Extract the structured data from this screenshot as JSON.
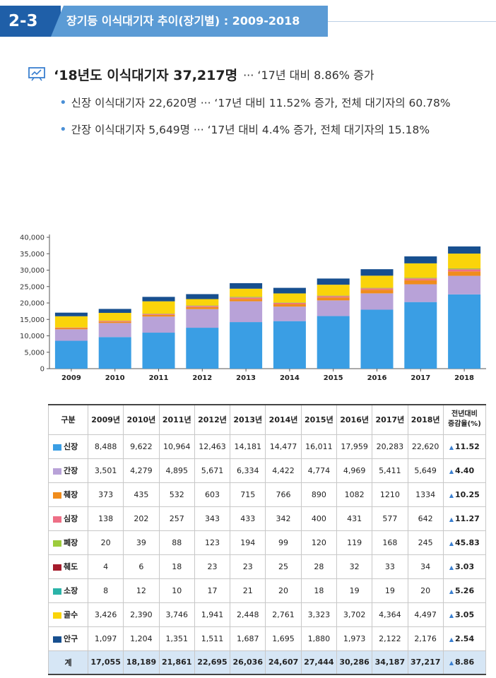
{
  "header": {
    "code": "2-3",
    "title": "장기등 이식대기자 추이(장기별) : 2009-2018"
  },
  "summary": {
    "main_bold": "‘18년도 이식대기자 37,217명",
    "main_rest": "··· ‘17년 대비 8.86% 증가",
    "bullets": [
      "신장 이식대기자 22,620명 ··· ‘17년 대비 11.52% 증가, 전체 대기자의 60.78%",
      "간장 이식대기자 5,649명 ··· ‘17년 대비 4.4% 증가, 전체 대기자의 15.18%"
    ]
  },
  "chart_data": {
    "type": "bar",
    "stacked": true,
    "categories": [
      "2009",
      "2010",
      "2011",
      "2012",
      "2013",
      "2014",
      "2015",
      "2016",
      "2017",
      "2018"
    ],
    "ylim": [
      0,
      40000
    ],
    "yticks": [
      "0",
      "5,000",
      "10,000",
      "15,000",
      "20,000",
      "25,000",
      "30,000",
      "35,000",
      "40,000"
    ],
    "ytick_values": [
      0,
      5000,
      10000,
      15000,
      20000,
      25000,
      30000,
      35000,
      40000
    ],
    "series": [
      {
        "name": "신장",
        "color": "#3a9ee4",
        "values": [
          8488,
          9622,
          10964,
          12463,
          14181,
          14477,
          16011,
          17959,
          20283,
          22620
        ]
      },
      {
        "name": "간장",
        "color": "#b8a2d8",
        "values": [
          3501,
          4279,
          4895,
          5671,
          6334,
          4422,
          4774,
          4969,
          5411,
          5649
        ]
      },
      {
        "name": "췌장",
        "color": "#f08c1c",
        "values": [
          373,
          435,
          532,
          603,
          715,
          766,
          890,
          1082,
          1210,
          1334
        ]
      },
      {
        "name": "심장",
        "color": "#ee6f86",
        "values": [
          138,
          202,
          257,
          343,
          433,
          342,
          400,
          431,
          577,
          642
        ]
      },
      {
        "name": "폐장",
        "color": "#9dcc3c",
        "values": [
          20,
          39,
          88,
          123,
          194,
          99,
          120,
          119,
          168,
          245
        ]
      },
      {
        "name": "췌도",
        "color": "#a51c2c",
        "values": [
          4,
          6,
          18,
          23,
          23,
          25,
          28,
          32,
          33,
          34
        ]
      },
      {
        "name": "소장",
        "color": "#2ab3a8",
        "values": [
          8,
          12,
          10,
          17,
          21,
          20,
          18,
          19,
          19,
          20
        ]
      },
      {
        "name": "골수",
        "color": "#fad40a",
        "values": [
          3426,
          2390,
          3746,
          1941,
          2448,
          2761,
          3323,
          3702,
          4364,
          4497
        ]
      },
      {
        "name": "안구",
        "color": "#174f8f",
        "values": [
          1097,
          1204,
          1351,
          1511,
          1687,
          1695,
          1880,
          1973,
          2122,
          2176
        ]
      }
    ]
  },
  "table": {
    "headers": [
      "구분",
      "2009년",
      "2010년",
      "2011년",
      "2012년",
      "2013년",
      "2014년",
      "2015년",
      "2016년",
      "2017년",
      "2018년",
      "전년대비",
      "증감율(%)"
    ],
    "rows": [
      {
        "label": "신장",
        "color": "#3a9ee4",
        "cells": [
          "8,488",
          "9,622",
          "10,964",
          "12,463",
          "14,181",
          "14,477",
          "16,011",
          "17,959",
          "20,283",
          "22,620"
        ],
        "change": "11.52"
      },
      {
        "label": "간장",
        "color": "#b8a2d8",
        "cells": [
          "3,501",
          "4,279",
          "4,895",
          "5,671",
          "6,334",
          "4,422",
          "4,774",
          "4,969",
          "5,411",
          "5,649"
        ],
        "change": "4.40"
      },
      {
        "label": "췌장",
        "color": "#f08c1c",
        "cells": [
          "373",
          "435",
          "532",
          "603",
          "715",
          "766",
          "890",
          "1082",
          "1210",
          "1334"
        ],
        "change": "10.25"
      },
      {
        "label": "심장",
        "color": "#ee6f86",
        "cells": [
          "138",
          "202",
          "257",
          "343",
          "433",
          "342",
          "400",
          "431",
          "577",
          "642"
        ],
        "change": "11.27"
      },
      {
        "label": "폐장",
        "color": "#9dcc3c",
        "cells": [
          "20",
          "39",
          "88",
          "123",
          "194",
          "99",
          "120",
          "119",
          "168",
          "245"
        ],
        "change": "45.83"
      },
      {
        "label": "췌도",
        "color": "#a51c2c",
        "cells": [
          "4",
          "6",
          "18",
          "23",
          "23",
          "25",
          "28",
          "32",
          "33",
          "34"
        ],
        "change": "3.03"
      },
      {
        "label": "소장",
        "color": "#2ab3a8",
        "cells": [
          "8",
          "12",
          "10",
          "17",
          "21",
          "20",
          "18",
          "19",
          "19",
          "20"
        ],
        "change": "5.26"
      },
      {
        "label": "골수",
        "color": "#fad40a",
        "cells": [
          "3,426",
          "2,390",
          "3,746",
          "1,941",
          "2,448",
          "2,761",
          "3,323",
          "3,702",
          "4,364",
          "4,497"
        ],
        "change": "3.05"
      },
      {
        "label": "안구",
        "color": "#174f8f",
        "cells": [
          "1,097",
          "1,204",
          "1,351",
          "1,511",
          "1,687",
          "1,695",
          "1,880",
          "1,973",
          "2,122",
          "2,176"
        ],
        "change": "2.54"
      }
    ],
    "total": {
      "label": "계",
      "cells": [
        "17,055",
        "18,189",
        "21,861",
        "22,695",
        "26,036",
        "24,607",
        "27,444",
        "30,286",
        "34,187",
        "37,217"
      ],
      "change": "8.86"
    }
  }
}
